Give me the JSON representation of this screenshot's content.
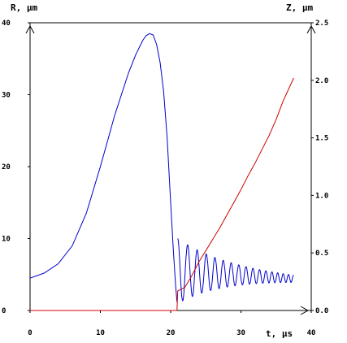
{
  "chart_data": {
    "type": "line",
    "title": "",
    "xlabel": "t, μs",
    "ylabel_left": "R, μm",
    "ylabel_right": "Z, μm",
    "xlim": [
      0,
      40
    ],
    "ylim_left": [
      0,
      40
    ],
    "ylim_right": [
      0,
      2.5
    ],
    "x_ticks": [
      "0",
      "10",
      "20",
      "30",
      "40"
    ],
    "y_left_ticks": [
      "0",
      "10",
      "20",
      "30",
      "40"
    ],
    "y_right_ticks": [
      "0.0",
      "0.5",
      "1.0",
      "1.5",
      "2.0",
      "2.5"
    ],
    "grid": false,
    "series": [
      {
        "axis": "left",
        "color": "#0000cc",
        "x": [
          0,
          2,
          4,
          6,
          8,
          10,
          11,
          12,
          13,
          14,
          15,
          16,
          16.5,
          17,
          17.5,
          18,
          18.5,
          19,
          19.5,
          20,
          20.4,
          20.7,
          20.9
        ],
        "y": [
          4.5,
          5.2,
          6.5,
          9.0,
          13.5,
          20.0,
          23.5,
          27.0,
          30.0,
          33.0,
          35.5,
          37.5,
          38.2,
          38.5,
          38.3,
          37.0,
          34.5,
          30.5,
          24.0,
          15.0,
          8.0,
          3.5,
          1.2
        ]
      },
      {
        "axis": "left",
        "color": "#0000cc",
        "oscillation": true,
        "x_start": 21.0,
        "x_end": 37.5,
        "center_start": 5.5,
        "center_end": 4.4,
        "amplitude_start": 4.5,
        "amplitude_end": 0.5,
        "first_period": 1.45,
        "last_period": 0.7,
        "cycles": 20
      },
      {
        "axis": "right",
        "color": "#cc0000",
        "x": [
          0,
          18,
          20.9,
          21.0,
          22.0,
          23.0,
          24.0,
          25.0,
          26.0,
          27.0,
          28.0,
          29.0,
          30.0,
          31.0,
          32.0,
          33.0,
          34.0,
          35.0,
          36.0,
          37.5
        ],
        "y": [
          0,
          0,
          0,
          0.17,
          0.2,
          0.3,
          0.42,
          0.52,
          0.62,
          0.72,
          0.83,
          0.94,
          1.05,
          1.17,
          1.28,
          1.4,
          1.52,
          1.66,
          1.82,
          2.02
        ]
      }
    ]
  }
}
